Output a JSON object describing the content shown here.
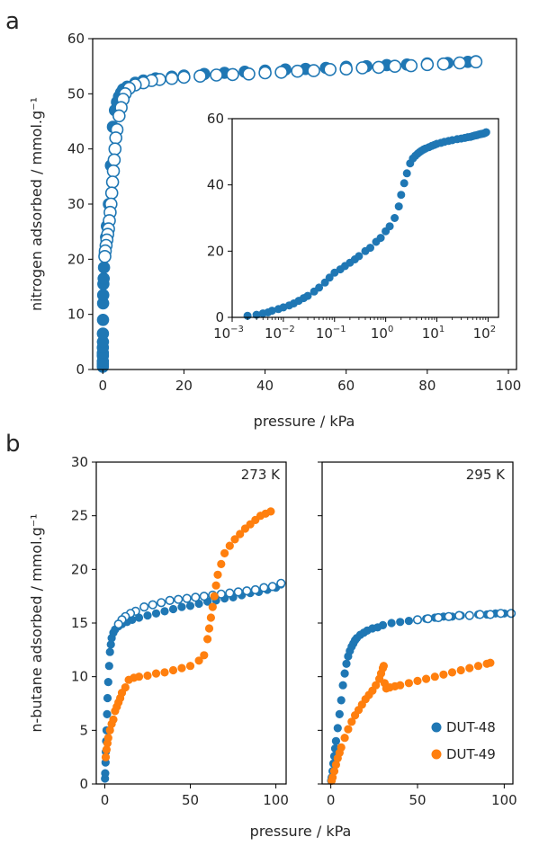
{
  "figure": {
    "panel_a_label": "a",
    "panel_b_label": "b"
  },
  "colors": {
    "dut48": "#1f77b4",
    "dut49": "#ff7f0e"
  },
  "chart_data": [
    {
      "id": "a-main",
      "type": "scatter",
      "title": "",
      "xlabel": "pressure / kPa",
      "ylabel": "nitrogen adsorbed / mmol.g⁻¹",
      "xlim": [
        -2.5,
        102
      ],
      "ylim": [
        0,
        60
      ],
      "xticks": [
        0,
        20,
        40,
        60,
        80,
        100
      ],
      "yticks": [
        0,
        10,
        20,
        30,
        40,
        50,
        60
      ],
      "legend": "none",
      "series": [
        {
          "role": "adsorption",
          "marker": "filled",
          "x": [
            0.002,
            0.003,
            0.005,
            0.008,
            0.01,
            0.015,
            0.02,
            0.03,
            0.05,
            0.08,
            0.1,
            0.15,
            0.2,
            0.3,
            0.5,
            0.8,
            1.0,
            1.5,
            2.0,
            2.5,
            3.0,
            3.5,
            4.0,
            4.5,
            5.0,
            6,
            8,
            10,
            13,
            17,
            20,
            25,
            30,
            35,
            40,
            45,
            50,
            55,
            60,
            65,
            70,
            75,
            80,
            85,
            90,
            92
          ],
          "y": [
            0.5,
            1.0,
            1.5,
            2.5,
            3.0,
            4.0,
            5.0,
            6.5,
            9.0,
            12.0,
            13.5,
            15.5,
            16.5,
            18.5,
            21,
            24,
            26,
            30,
            37,
            44,
            47,
            48.5,
            49.5,
            50.2,
            50.8,
            51.3,
            52.0,
            52.4,
            52.8,
            53.1,
            53.3,
            53.6,
            53.8,
            54.0,
            54.2,
            54.4,
            54.5,
            54.7,
            54.9,
            55.0,
            55.2,
            55.3,
            55.5,
            55.6,
            55.8,
            55.9
          ]
        },
        {
          "role": "desorption",
          "marker": "open",
          "x": [
            92,
            88,
            84,
            80,
            76,
            72,
            68,
            64,
            60,
            56,
            52,
            48,
            44,
            40,
            36,
            32,
            28,
            24,
            20,
            17,
            14,
            12,
            10,
            8,
            6.5,
            5.5,
            5.0,
            4.5,
            4.0,
            3.5,
            3.2,
            3.0,
            2.8,
            2.6,
            2.4,
            2.2,
            2.0,
            1.8,
            1.6,
            1.4,
            1.2,
            1.0,
            0.8,
            0.6,
            0.5
          ],
          "y": [
            55.8,
            55.6,
            55.4,
            55.3,
            55.1,
            55.0,
            54.8,
            54.7,
            54.5,
            54.4,
            54.2,
            54.1,
            53.9,
            53.8,
            53.6,
            53.5,
            53.4,
            53.2,
            53.0,
            52.8,
            52.6,
            52.4,
            52.0,
            51.6,
            51.0,
            50.0,
            49.0,
            47.5,
            46.0,
            43.5,
            42.0,
            40.0,
            38.0,
            36.0,
            34.0,
            32.0,
            30.0,
            28.5,
            27.0,
            25.5,
            24.5,
            23.5,
            22.5,
            21.5,
            20.5
          ]
        }
      ]
    },
    {
      "id": "a-inset",
      "type": "scatter",
      "title": "",
      "xlabel": "",
      "ylabel": "",
      "xscale": "log",
      "xlim": [
        0.001,
        160
      ],
      "ylim": [
        0,
        60
      ],
      "xticks": [
        0.001,
        0.01,
        0.1,
        1,
        10,
        100
      ],
      "xtick_labels": [
        {
          "base": "10",
          "exp": "−3"
        },
        {
          "base": "10",
          "exp": "−2"
        },
        {
          "base": "10",
          "exp": "−1"
        },
        {
          "base": "10",
          "exp": "0"
        },
        {
          "base": "10",
          "exp": "1"
        },
        {
          "base": "10",
          "exp": "2"
        }
      ],
      "yticks": [
        0,
        20,
        40,
        60
      ],
      "series": [
        {
          "role": "adsorption",
          "marker": "filled",
          "x": [
            0.002,
            0.003,
            0.004,
            0.005,
            0.006,
            0.008,
            0.01,
            0.013,
            0.016,
            0.02,
            0.025,
            0.03,
            0.04,
            0.05,
            0.065,
            0.08,
            0.1,
            0.13,
            0.16,
            0.2,
            0.25,
            0.3,
            0.4,
            0.5,
            0.65,
            0.8,
            1.0,
            1.2,
            1.5,
            1.8,
            2.0,
            2.3,
            2.6,
            3.0,
            3.4,
            3.8,
            4.2,
            4.6,
            5.0,
            5.5,
            6,
            7,
            8,
            9,
            10,
            12,
            14,
            17,
            20,
            25,
            30,
            35,
            40,
            45,
            50,
            55,
            60,
            65,
            70,
            75,
            80,
            85,
            90,
            92
          ],
          "y": [
            0.5,
            0.8,
            1.2,
            1.5,
            2.0,
            2.5,
            3.0,
            3.6,
            4.2,
            5.0,
            5.8,
            6.5,
            7.8,
            9.0,
            10.5,
            12.0,
            13.5,
            14.5,
            15.5,
            16.5,
            17.5,
            18.5,
            20.0,
            21.0,
            22.8,
            24.0,
            26.0,
            27.5,
            30.0,
            33.5,
            37.0,
            40.5,
            43.5,
            46.5,
            48.0,
            48.8,
            49.4,
            49.9,
            50.3,
            50.7,
            51.0,
            51.4,
            51.8,
            52.1,
            52.4,
            52.7,
            53.0,
            53.3,
            53.5,
            53.8,
            54.0,
            54.2,
            54.4,
            54.5,
            54.7,
            54.9,
            55.0,
            55.2,
            55.3,
            55.4,
            55.5,
            55.6,
            55.8,
            55.9
          ]
        }
      ]
    },
    {
      "id": "b-273K",
      "type": "scatter",
      "title": "",
      "annotation": "273 K",
      "xlabel": "pressure / kPa",
      "ylabel": "n-butane adsorbed / mmol.g⁻¹",
      "xlim": [
        -5,
        106
      ],
      "ylim": [
        0,
        30
      ],
      "xticks": [
        0,
        50,
        100
      ],
      "yticks": [
        0,
        5,
        10,
        15,
        20,
        25,
        30
      ],
      "series": [
        {
          "name": "DUT-48",
          "role": "adsorption",
          "marker": "filled",
          "x": [
            0.1,
            0.2,
            0.4,
            0.6,
            0.8,
            1.0,
            1.3,
            1.6,
            2.0,
            2.5,
            3.0,
            3.5,
            4.0,
            5,
            6,
            8,
            10,
            13,
            16,
            20,
            25,
            30,
            35,
            40,
            45,
            50,
            55,
            60,
            65,
            70,
            75,
            80,
            85,
            90,
            95,
            100,
            103
          ],
          "y": [
            0.5,
            1.0,
            2.0,
            3.0,
            4.0,
            5.0,
            6.5,
            8.0,
            9.5,
            11.0,
            12.3,
            13.0,
            13.6,
            14.1,
            14.4,
            14.7,
            14.9,
            15.1,
            15.3,
            15.5,
            15.7,
            15.9,
            16.1,
            16.3,
            16.5,
            16.6,
            16.8,
            17.0,
            17.1,
            17.3,
            17.4,
            17.6,
            17.8,
            17.9,
            18.1,
            18.3,
            18.6
          ]
        },
        {
          "name": "DUT-48",
          "role": "desorption",
          "marker": "open",
          "x": [
            103,
            98,
            93,
            88,
            83,
            78,
            73,
            68,
            63,
            58,
            53,
            48,
            43,
            38,
            33,
            28,
            23,
            18,
            15,
            12,
            10,
            8
          ],
          "y": [
            18.7,
            18.4,
            18.3,
            18.1,
            18.0,
            17.9,
            17.8,
            17.7,
            17.6,
            17.5,
            17.4,
            17.3,
            17.2,
            17.1,
            16.9,
            16.7,
            16.5,
            16.1,
            15.9,
            15.6,
            15.3,
            14.9
          ]
        },
        {
          "name": "DUT-49",
          "role": "adsorption",
          "marker": "filled",
          "x": [
            0.5,
            1,
            1.5,
            2,
            3,
            4,
            5,
            6,
            7,
            8,
            9,
            10,
            12,
            14,
            17,
            20,
            25,
            30,
            35,
            40,
            45,
            50,
            55,
            58,
            60,
            61,
            62,
            63,
            64,
            65,
            66,
            68,
            70,
            73,
            76,
            79,
            82,
            85,
            88,
            91,
            94,
            97
          ],
          "y": [
            2.5,
            3.2,
            3.8,
            4.3,
            5.0,
            5.6,
            6.0,
            6.8,
            7.2,
            7.6,
            8.0,
            8.5,
            9.0,
            9.7,
            9.9,
            10.0,
            10.1,
            10.3,
            10.4,
            10.6,
            10.8,
            11.0,
            11.5,
            12.0,
            13.5,
            14.5,
            15.5,
            16.5,
            17.5,
            18.5,
            19.5,
            20.5,
            21.5,
            22.2,
            22.8,
            23.3,
            23.8,
            24.2,
            24.6,
            25.0,
            25.2,
            25.4
          ]
        }
      ]
    },
    {
      "id": "b-295K",
      "type": "scatter",
      "title": "",
      "annotation": "295 K",
      "xlabel": "",
      "ylabel": "",
      "xlim": [
        -5,
        105
      ],
      "ylim": [
        0,
        30
      ],
      "xticks": [
        0,
        50,
        100
      ],
      "yticks": [],
      "legend": "lower-right",
      "series": [
        {
          "name": "DUT-48",
          "role": "adsorption",
          "marker": "filled",
          "x": [
            0.2,
            0.5,
            1,
            1.5,
            2,
            2.5,
            3,
            4,
            5,
            6,
            7,
            8,
            9,
            10,
            11,
            12,
            13,
            14,
            15,
            17,
            19,
            21,
            24,
            27,
            30,
            35,
            40,
            45,
            50,
            55,
            60,
            65,
            70,
            75,
            80,
            85,
            90,
            95,
            100,
            104
          ],
          "y": [
            0.3,
            0.6,
            1.2,
            1.9,
            2.6,
            3.3,
            4.0,
            5.2,
            6.5,
            7.8,
            9.2,
            10.3,
            11.2,
            11.9,
            12.4,
            12.8,
            13.1,
            13.4,
            13.6,
            13.9,
            14.1,
            14.3,
            14.5,
            14.6,
            14.8,
            15.0,
            15.1,
            15.2,
            15.3,
            15.4,
            15.5,
            15.6,
            15.6,
            15.7,
            15.7,
            15.8,
            15.8,
            15.9,
            15.9,
            15.9
          ]
        },
        {
          "name": "DUT-48",
          "role": "desorption",
          "marker": "open",
          "x": [
            104,
            98,
            92,
            86,
            80,
            74,
            68,
            62,
            56,
            50
          ],
          "y": [
            15.9,
            15.9,
            15.8,
            15.8,
            15.7,
            15.7,
            15.6,
            15.5,
            15.4,
            15.3
          ]
        },
        {
          "name": "DUT-49",
          "role": "adsorption",
          "marker": "filled",
          "x": [
            0.5,
            1,
            2,
            3,
            4,
            5,
            6,
            8,
            10,
            12,
            14,
            16,
            18,
            20,
            22,
            24,
            26,
            28,
            29,
            30,
            30.5,
            31,
            32,
            34,
            37,
            40,
            45,
            50,
            55,
            60,
            65,
            70,
            75,
            80,
            85,
            90,
            92
          ],
          "y": [
            0.3,
            0.6,
            1.2,
            1.8,
            2.4,
            2.9,
            3.4,
            4.3,
            5.1,
            5.8,
            6.4,
            6.9,
            7.4,
            7.9,
            8.3,
            8.7,
            9.2,
            9.8,
            10.3,
            10.8,
            11.0,
            9.4,
            8.9,
            9.0,
            9.1,
            9.2,
            9.4,
            9.6,
            9.8,
            10.0,
            10.2,
            10.4,
            10.6,
            10.8,
            11.0,
            11.2,
            11.3
          ]
        }
      ]
    }
  ]
}
